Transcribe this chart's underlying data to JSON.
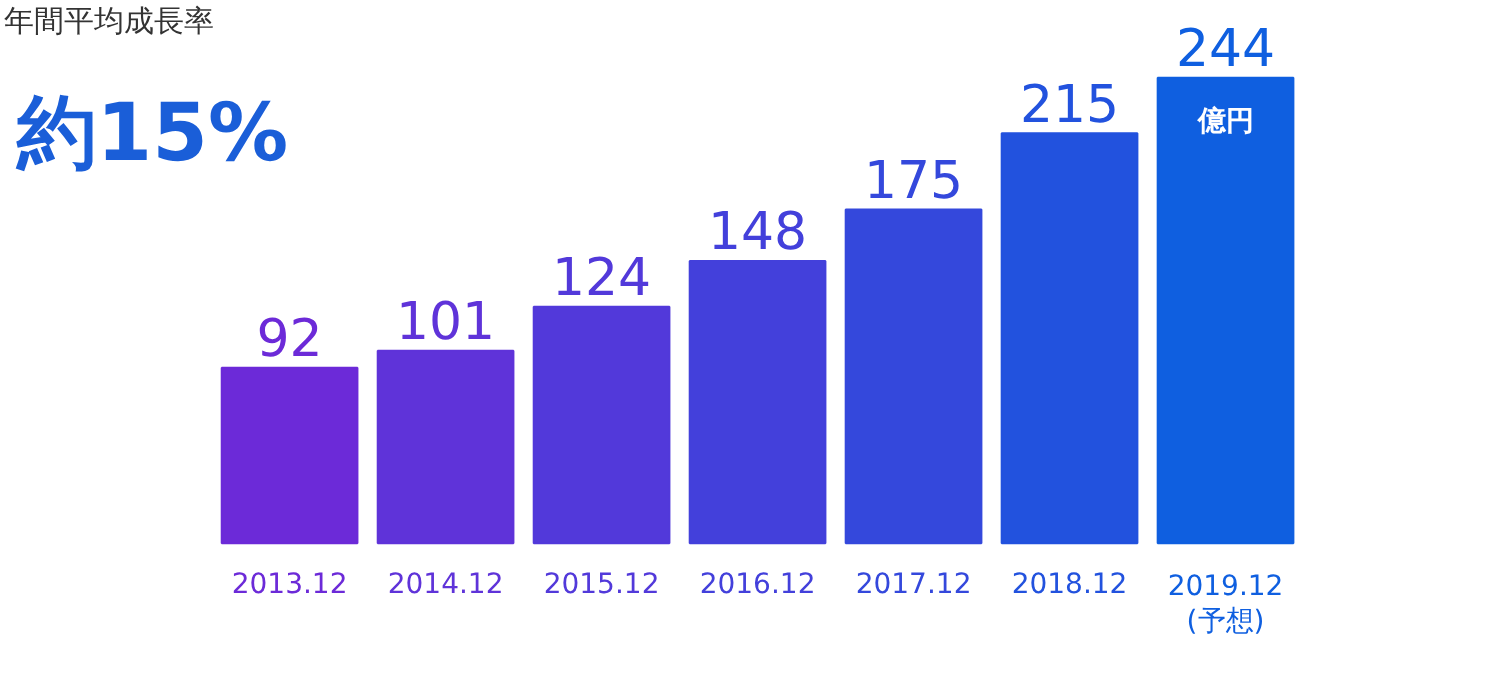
{
  "chart_data": {
    "type": "bar",
    "title": "年間平均成長率",
    "categories": [
      "2013.12",
      "2014.12",
      "2015.12",
      "2016.12",
      "2017.12",
      "2018.12",
      "2019.12\n(予想)"
    ],
    "values": [
      92,
      101,
      124,
      148,
      175,
      215,
      244
    ],
    "colors": [
      "#6c2ad8",
      "#5f33d9",
      "#5239da",
      "#4340db",
      "#3448dc",
      "#2252de",
      "#0f5fe0"
    ],
    "data_labels": true,
    "annotations": [
      "約15%",
      "億円"
    ]
  }
}
